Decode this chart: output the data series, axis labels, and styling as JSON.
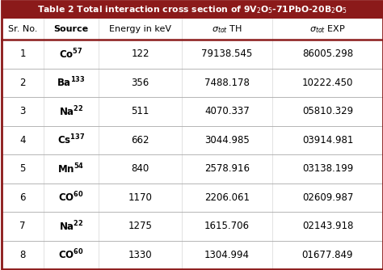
{
  "title": "Table 2 Total interaction cross section of 9V$_2$O$_5$-71PbO-20B$_2$O$_5$",
  "rows": [
    [
      "1",
      "Co",
      "57",
      "122",
      "79138.545",
      "86005.298"
    ],
    [
      "2",
      "Ba",
      "133",
      "356",
      "7488.178",
      "10222.450"
    ],
    [
      "3",
      "Na",
      "22",
      "511",
      "4070.337",
      "05810.329"
    ],
    [
      "4",
      "Cs",
      "137",
      "662",
      "3044.985",
      "03914.981"
    ],
    [
      "5",
      "Mn",
      "54",
      "840",
      "2578.916",
      "03138.199"
    ],
    [
      "6",
      "CO",
      "60",
      "1170",
      "2206.061",
      "02609.987"
    ],
    [
      "7",
      "Na",
      "22",
      "1275",
      "1615.706",
      "02143.918"
    ],
    [
      "8",
      "CO",
      "60",
      "1330",
      "1304.994",
      "01677.849"
    ]
  ],
  "title_bg": "#8B1A1A",
  "title_fg": "#FFFFFF",
  "border_color": "#8B1A1A",
  "bg_color": "#FFFFFF",
  "figsize": [
    4.74,
    3.34
  ],
  "dpi": 100
}
